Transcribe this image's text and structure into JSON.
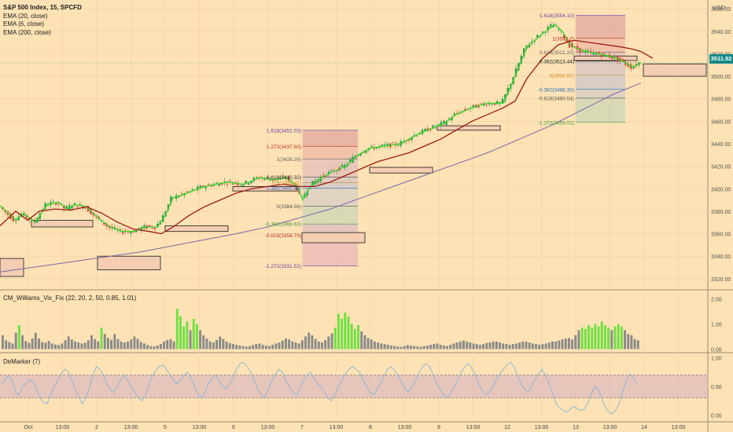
{
  "symbol": {
    "title": "S&P 500 Index, 15, SPCFD",
    "indicators": [
      "EMA (20, close)",
      "EMA (6, close)",
      "EMA (200, close)"
    ],
    "currency_label": "USD",
    "last_price": "3511.92"
  },
  "panels": {
    "vix_title": "CM_Williams_Vix_Fix (22, 20, 2, 50, 0.85, 1.01)",
    "demarker_title": "DeMarker (7)"
  },
  "colors": {
    "background": "#fce2b4",
    "candle_up": "#2f9a4e",
    "candle_down": "#d8443a",
    "ema6": "#3cd62e",
    "ema20": "#9c1c12",
    "ema200": "#7a6aa8",
    "vix_high": "#6ee142",
    "vix_normal": "#8a8a8a",
    "demarker_line": "#86b6d8",
    "demarker_band": "#d7b3c0"
  },
  "chart_data": [
    {
      "type": "line",
      "title": "S&P 500 Index, 15, SPCFD",
      "y_ticks": [
        "3320.00",
        "3340.00",
        "3360.00",
        "3380.00",
        "3400.00",
        "3420.00",
        "3440.00",
        "3460.00",
        "3480.00",
        "3500.00",
        "3520.00",
        "3540.00",
        "3560.00"
      ],
      "ylim": [
        3315,
        3565
      ],
      "x_ticks": [
        "Oct",
        "13:00",
        "2",
        "13:00",
        "5",
        "13:00",
        "6",
        "13:00",
        "7",
        "13:00",
        "8",
        "13:00",
        "9",
        "13:00",
        "12",
        "13:00",
        "13",
        "13:00",
        "14",
        "13:00"
      ],
      "series": [
        {
          "name": "EMA (6, close)",
          "x": [
            0,
            20,
            30,
            45,
            60,
            75,
            85,
            95,
            110,
            125,
            140,
            155,
            170,
            185,
            200,
            210,
            220,
            230,
            245,
            260,
            275,
            290,
            310,
            330,
            350,
            365,
            378,
            385,
            395,
            405,
            420,
            440,
            455,
            470,
            490,
            510,
            530,
            550,
            565,
            580,
            600,
            620,
            640,
            655,
            670,
            690,
            705,
            715,
            725,
            735,
            745,
            760,
            775,
            790,
            805,
            815
          ],
          "y": [
            3385,
            3372,
            3378,
            3370,
            3386,
            3388,
            3382,
            3386,
            3384,
            3374,
            3366,
            3362,
            3362,
            3366,
            3366,
            3376,
            3392,
            3394,
            3398,
            3402,
            3404,
            3406,
            3404,
            3410,
            3408,
            3410,
            3402,
            3390,
            3402,
            3408,
            3414,
            3420,
            3430,
            3436,
            3438,
            3440,
            3448,
            3454,
            3458,
            3466,
            3472,
            3476,
            3476,
            3500,
            3526,
            3538,
            3546,
            3540,
            3528,
            3524,
            3522,
            3520,
            3518,
            3514,
            3508,
            3512
          ]
        },
        {
          "name": "EMA (20, close)",
          "x": [
            0,
            20,
            35,
            50,
            70,
            90,
            110,
            130,
            150,
            170,
            190,
            205,
            220,
            240,
            260,
            280,
            300,
            320,
            340,
            360,
            380,
            400,
            420,
            440,
            460,
            480,
            500,
            520,
            540,
            560,
            580,
            600,
            620,
            640,
            655,
            670,
            690,
            710,
            730,
            750,
            770,
            790,
            805,
            815,
            830
          ],
          "y": [
            3367,
            3380,
            3372,
            3380,
            3382,
            3381,
            3384,
            3378,
            3370,
            3364,
            3362,
            3360,
            3366,
            3376,
            3384,
            3390,
            3396,
            3400,
            3402,
            3404,
            3402,
            3402,
            3406,
            3412,
            3418,
            3424,
            3428,
            3432,
            3438,
            3444,
            3452,
            3460,
            3466,
            3472,
            3478,
            3498,
            3516,
            3528,
            3532,
            3530,
            3528,
            3526,
            3524,
            3522,
            3516
          ]
        },
        {
          "name": "EMA (200, close)",
          "x": [
            0,
            60,
            120,
            180,
            240,
            300,
            340,
            380,
            420,
            460,
            500,
            540,
            580,
            620,
            660,
            700,
            740,
            780,
            815
          ],
          "y": [
            3326,
            3332,
            3338,
            3344,
            3352,
            3360,
            3366,
            3374,
            3382,
            3392,
            3402,
            3412,
            3422,
            3432,
            3444,
            3456,
            3470,
            3484,
            3494
          ]
        }
      ],
      "fibonacci": [
        {
          "levels": [
            {
              "label": "1.618(3452.03)",
              "value": 3452.03
            },
            {
              "label": "1.272(3437.60)",
              "value": 3437.6
            },
            {
              "label": "1(3426.26)",
              "value": 3426.26
            },
            {
              "label": "0.618(3410.32)",
              "value": 3410.32
            },
            {
              "label": "0.5(3405.41)",
              "value": 3405.41
            },
            {
              "label": "0.382(3400.49)",
              "value": 3400.49
            },
            {
              "label": "0(3384.56)",
              "value": 3384.56
            },
            {
              "label": "-0.382(3368.63)",
              "value": 3368.63
            },
            {
              "label": "-0.618(3358.79)",
              "value": 3358.79
            },
            {
              "label": "-1.272(3331.52)",
              "value": 3331.52
            }
          ]
        },
        {
          "levels": [
            {
              "label": "1.618(3554.10)",
              "value": 3554.1
            },
            {
              "label": "1(3533.7)",
              "value": 3533.7
            },
            {
              "label": "0.618(3521.20)",
              "value": 3521.2
            },
            {
              "label": "0.382(3513.44)",
              "value": 3513.44
            },
            {
              "label": "0(3500.87)",
              "value": 3500.87
            },
            {
              "label": "-0.382(3488.30)",
              "value": 3488.3
            },
            {
              "label": "-0.618(3480.54)",
              "value": 3480.54
            },
            {
              "label": "-1.272(3459.02)",
              "value": 3459.02
            }
          ]
        }
      ],
      "zones": [
        {
          "x0": 0,
          "x1": 30,
          "y0": 3338,
          "y1": 3322
        },
        {
          "x0": 40,
          "x1": 118,
          "y0": 3372,
          "y1": 3366
        },
        {
          "x0": 124,
          "x1": 204,
          "y0": 3340,
          "y1": 3328
        },
        {
          "x0": 210,
          "x1": 290,
          "y0": 3367,
          "y1": 3362
        },
        {
          "x0": 296,
          "x1": 380,
          "y0": 3402,
          "y1": 3398
        },
        {
          "x0": 384,
          "x1": 464,
          "y0": 3361,
          "y1": 3352
        },
        {
          "x0": 470,
          "x1": 550,
          "y0": 3419,
          "y1": 3414
        },
        {
          "x0": 556,
          "x1": 636,
          "y0": 3456,
          "y1": 3452
        },
        {
          "x0": 730,
          "x1": 810,
          "y0": 3518,
          "y1": 3514
        },
        {
          "x0": 818,
          "x1": 898,
          "y0": 3511,
          "y1": 3500
        }
      ]
    },
    {
      "type": "bar",
      "title": "CM_Williams_Vix_Fix (22, 20, 2, 50, 0.85, 1.01)",
      "y_ticks": [
        "2.00",
        "1.00",
        "0.00"
      ],
      "ylim": [
        -0.05,
        2.2
      ],
      "values": [
        0.55,
        0.35,
        0.28,
        0.22,
        0.65,
        0.95,
        0.55,
        0.32,
        0.25,
        0.42,
        0.65,
        0.42,
        0.28,
        0.25,
        0.32,
        0.22,
        0.18,
        0.16,
        0.22,
        0.35,
        0.5,
        0.38,
        0.3,
        0.26,
        0.22,
        0.25,
        0.35,
        0.55,
        0.4,
        0.3,
        0.85,
        0.6,
        0.44,
        0.36,
        0.6,
        0.4,
        0.3,
        0.26,
        0.3,
        0.38,
        0.5,
        0.4,
        0.28,
        0.22,
        0.16,
        0.12,
        0.1,
        0.14,
        0.2,
        0.3,
        0.36,
        0.4,
        0.3,
        1.6,
        1.3,
        0.9,
        1.1,
        0.75,
        1.2,
        1.0,
        0.75,
        0.55,
        0.42,
        0.3,
        0.26,
        0.36,
        0.5,
        0.4,
        0.3,
        0.24,
        0.2,
        0.17,
        0.14,
        0.12,
        0.1,
        0.12,
        0.16,
        0.2,
        0.22,
        0.17,
        0.14,
        0.12,
        0.17,
        0.22,
        0.26,
        0.34,
        0.42,
        0.38,
        0.3,
        0.26,
        0.22,
        0.35,
        0.5,
        0.65,
        0.55,
        0.4,
        0.3,
        0.26,
        0.36,
        0.5,
        0.62,
        0.85,
        1.4,
        1.2,
        1.45,
        1.3,
        1.0,
        0.8,
        0.95,
        0.7,
        0.55,
        0.44,
        0.38,
        0.3,
        0.26,
        0.22,
        0.2,
        0.17,
        0.14,
        0.12,
        0.1,
        0.09,
        0.12,
        0.16,
        0.14,
        0.12,
        0.1,
        0.09,
        0.12,
        0.14,
        0.17,
        0.2,
        0.22,
        0.17,
        0.14,
        0.12,
        0.17,
        0.22,
        0.26,
        0.3,
        0.34,
        0.3,
        0.26,
        0.22,
        0.2,
        0.17,
        0.2,
        0.24,
        0.26,
        0.3,
        0.3,
        0.26,
        0.22,
        0.2,
        0.17,
        0.2,
        0.22,
        0.26,
        0.3,
        0.3,
        0.26,
        0.22,
        0.2,
        0.17,
        0.2,
        0.22,
        0.26,
        0.3,
        0.3,
        0.34,
        0.38,
        0.42,
        0.44,
        0.38,
        0.55,
        0.75,
        0.85,
        0.8,
        0.95,
        0.85,
        1.0,
        0.9,
        1.1,
        0.95,
        0.85,
        0.75,
        0.9,
        1.0,
        0.9,
        0.75,
        0.6,
        0.55,
        0.4,
        0.35
      ],
      "highlight_threshold": 0.8
    },
    {
      "type": "line",
      "title": "DeMarker (7)",
      "y_ticks": [
        "1.00",
        "0.50",
        "0.00"
      ],
      "ylim": [
        -0.05,
        1.05
      ],
      "bands": [
        0.3,
        0.7
      ],
      "values": [
        0.55,
        0.62,
        0.7,
        0.6,
        0.4,
        0.35,
        0.5,
        0.55,
        0.62,
        0.58,
        0.45,
        0.3,
        0.22,
        0.2,
        0.35,
        0.5,
        0.6,
        0.72,
        0.8,
        0.75,
        0.6,
        0.45,
        0.32,
        0.2,
        0.3,
        0.48,
        0.7,
        0.85,
        0.8,
        0.7,
        0.55,
        0.45,
        0.4,
        0.5,
        0.62,
        0.7,
        0.6,
        0.5,
        0.4,
        0.3,
        0.25,
        0.35,
        0.55,
        0.68,
        0.78,
        0.85,
        0.88,
        0.8,
        0.7,
        0.6,
        0.55,
        0.6,
        0.7,
        0.75,
        0.65,
        0.5,
        0.35,
        0.3,
        0.4,
        0.55,
        0.65,
        0.7,
        0.6,
        0.5,
        0.45,
        0.55,
        0.65,
        0.8,
        0.9,
        0.92,
        0.85,
        0.75,
        0.6,
        0.45,
        0.35,
        0.3,
        0.45,
        0.6,
        0.7,
        0.8,
        0.75,
        0.6,
        0.5,
        0.4,
        0.35,
        0.45,
        0.6,
        0.7,
        0.75,
        0.65,
        0.55,
        0.5,
        0.4,
        0.3,
        0.25,
        0.35,
        0.5,
        0.6,
        0.72,
        0.8,
        0.85,
        0.8,
        0.75,
        0.62,
        0.5,
        0.4,
        0.35,
        0.45,
        0.55,
        0.68,
        0.8,
        0.85,
        0.78,
        0.7,
        0.58,
        0.45,
        0.4,
        0.5,
        0.6,
        0.75,
        0.85,
        0.9,
        0.85,
        0.7,
        0.55,
        0.45,
        0.35,
        0.3,
        0.38,
        0.5,
        0.62,
        0.75,
        0.85,
        0.9,
        0.82,
        0.7,
        0.55,
        0.42,
        0.35,
        0.4,
        0.5,
        0.62,
        0.72,
        0.8,
        0.88,
        0.92,
        0.85,
        0.7,
        0.55,
        0.45,
        0.4,
        0.5,
        0.62,
        0.72,
        0.8,
        0.7,
        0.55,
        0.4,
        0.2,
        0.12,
        0.08,
        0.05,
        0.1,
        0.15,
        0.12,
        0.08,
        0.1,
        0.2,
        0.35,
        0.5,
        0.45,
        0.3,
        0.15,
        0.05,
        0.02,
        0.08,
        0.2,
        0.4,
        0.6,
        0.72,
        0.65,
        0.55
      ]
    }
  ]
}
